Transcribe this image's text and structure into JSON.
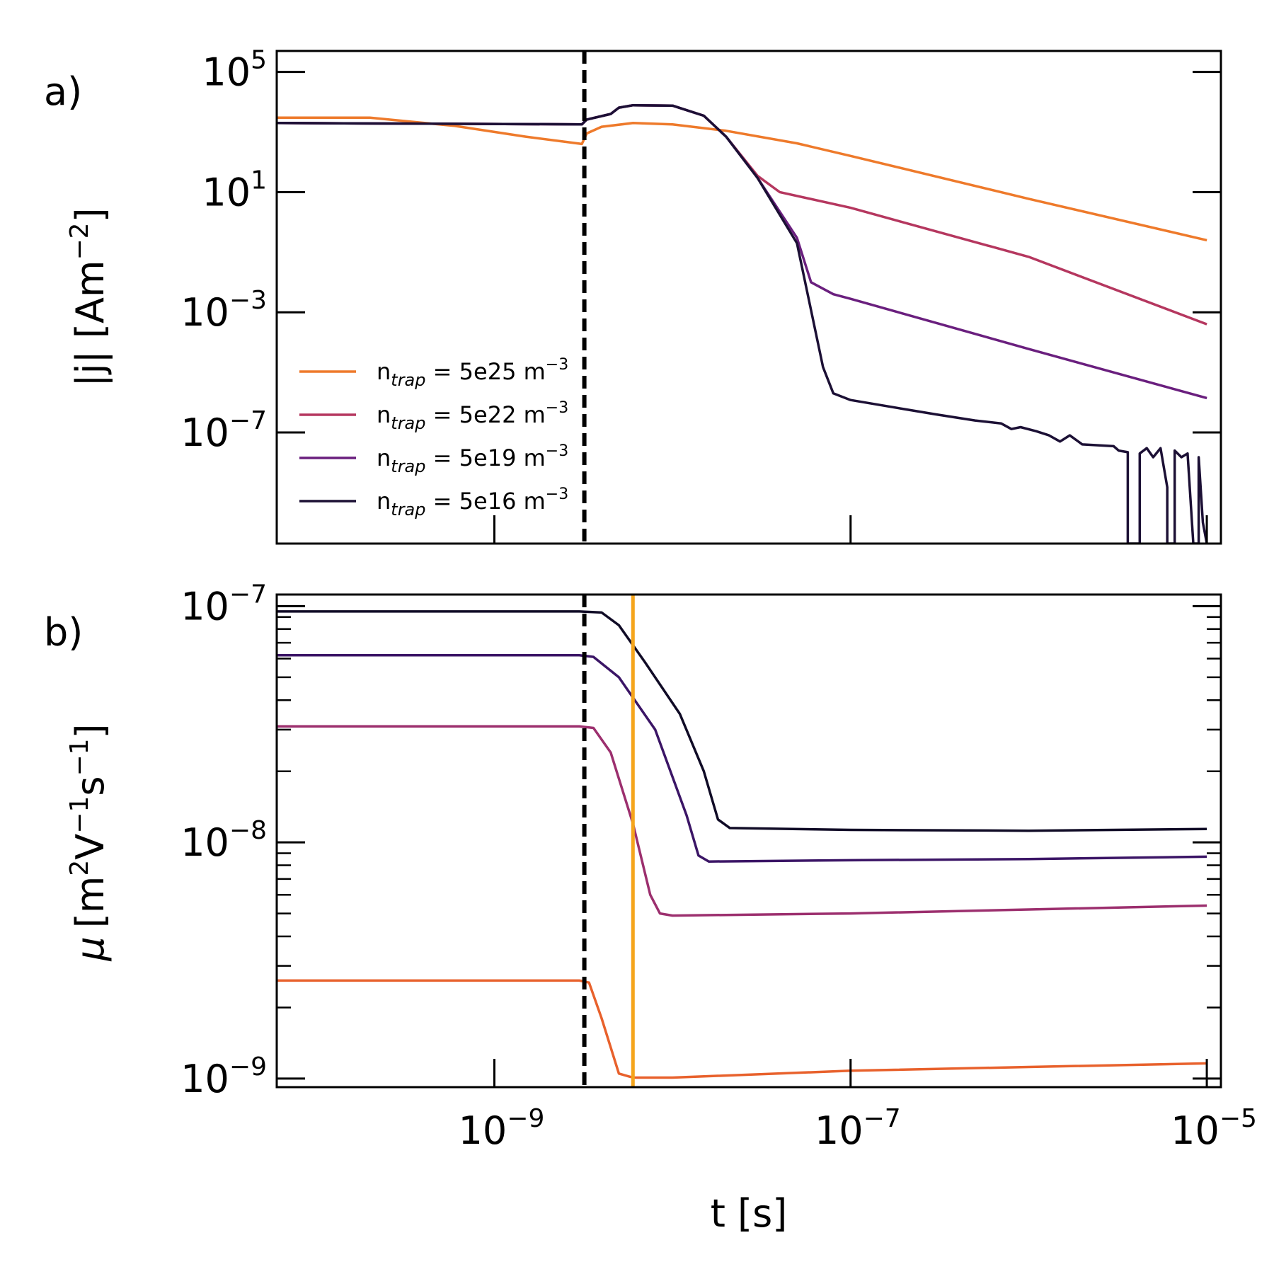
{
  "chart_data": [
    {
      "type": "line",
      "panel_label": "a)",
      "ylabel": "|j| [Am",
      "ylabel_sup": "−2",
      "ylabel_close": "]",
      "xscale": "log",
      "yscale": "log",
      "xlim": [
        6e-11,
        1.2e-05
      ],
      "ylim": [
        2e-11,
        500000.0
      ],
      "yticks": [
        {
          "value": 100000.0,
          "base": "10",
          "exp": "5"
        },
        {
          "value": 10,
          "base": "10",
          "exp": "1"
        },
        {
          "value": 0.001,
          "base": "10",
          "exp": "−3"
        },
        {
          "value": 1e-07,
          "base": "10",
          "exp": "−7"
        }
      ],
      "xticks": [
        1e-09,
        1e-07,
        1e-05
      ],
      "vlines": [
        {
          "x": 3.2e-09,
          "style": "dashed",
          "color": "#000000"
        }
      ],
      "legend": {
        "position": "lower-left"
      },
      "series": [
        {
          "name": "5e25",
          "label_pre": "n",
          "label_sub": "trap",
          "label_mid": " = 5e25 m",
          "label_sup": "−3",
          "color": "#ee7a2b",
          "points": [
            [
              6e-11,
              3000
            ],
            [
              2e-10,
              3000
            ],
            [
              6e-10,
              1600
            ],
            [
              1.5e-09,
              700
            ],
            [
              3.1e-09,
              400
            ],
            [
              3.3e-09,
              900
            ],
            [
              4e-09,
              1500
            ],
            [
              6e-09,
              2000
            ],
            [
              1e-08,
              1800
            ],
            [
              2e-08,
              1100
            ],
            [
              5e-08,
              420
            ],
            [
              1e-07,
              160
            ],
            [
              1e-06,
              6
            ],
            [
              1e-05,
              0.25
            ]
          ]
        },
        {
          "name": "5e22",
          "label_pre": "n",
          "label_sub": "trap",
          "label_mid": " = 5e22 m",
          "label_sup": "−3",
          "color": "#b5375f",
          "points": [
            [
              6e-11,
              2000
            ],
            [
              3.1e-09,
              1800
            ],
            [
              3.3e-09,
              2600
            ],
            [
              4.5e-09,
              4000
            ],
            [
              5e-09,
              6500
            ],
            [
              6e-09,
              7800
            ],
            [
              1e-08,
              7600
            ],
            [
              1.5e-08,
              3500
            ],
            [
              2e-08,
              700
            ],
            [
              3e-08,
              35
            ],
            [
              4e-08,
              10
            ],
            [
              1e-07,
              3
            ],
            [
              1e-06,
              0.07
            ],
            [
              1e-05,
              0.0004
            ]
          ]
        },
        {
          "name": "5e19",
          "label_pre": "n",
          "label_sub": "trap",
          "label_mid": " = 5e19 m",
          "label_sup": "−3",
          "color": "#6a1f7e",
          "points": [
            [
              6e-11,
              2000
            ],
            [
              3.1e-09,
              1800
            ],
            [
              3.3e-09,
              2600
            ],
            [
              4.5e-09,
              4000
            ],
            [
              5e-09,
              6500
            ],
            [
              6e-09,
              7800
            ],
            [
              1e-08,
              7600
            ],
            [
              1.5e-08,
              3500
            ],
            [
              2e-08,
              700
            ],
            [
              3e-08,
              30
            ],
            [
              5e-08,
              0.3
            ],
            [
              6e-08,
              0.01
            ],
            [
              8e-08,
              0.004
            ],
            [
              1e-07,
              0.0028
            ],
            [
              1e-06,
              6e-05
            ],
            [
              1e-05,
              1.4e-06
            ]
          ]
        },
        {
          "name": "5e16",
          "label_pre": "n",
          "label_sub": "trap",
          "label_mid": " = 5e16 m",
          "label_sup": "−3",
          "color": "#1c1035",
          "points": [
            [
              6e-11,
              2000
            ],
            [
              3.1e-09,
              1800
            ],
            [
              3.3e-09,
              2600
            ],
            [
              4.5e-09,
              4000
            ],
            [
              5e-09,
              6500
            ],
            [
              6e-09,
              7800
            ],
            [
              1e-08,
              7600
            ],
            [
              1.5e-08,
              3500
            ],
            [
              2e-08,
              700
            ],
            [
              3e-08,
              30
            ],
            [
              5e-08,
              0.2
            ],
            [
              7e-08,
              1.5e-05
            ],
            [
              8e-08,
              2e-06
            ],
            [
              1e-07,
              1.2e-06
            ],
            [
              2e-07,
              6e-07
            ],
            [
              3e-07,
              4e-07
            ],
            [
              5e-07,
              2.5e-07
            ],
            [
              7e-07,
              2e-07
            ],
            [
              8e-07,
              1.3e-07
            ],
            [
              9e-07,
              1.5e-07
            ],
            [
              1.1e-06,
              1.1e-07
            ],
            [
              1.3e-06,
              8e-08
            ],
            [
              1.5e-06,
              5e-08
            ],
            [
              1.7e-06,
              8e-08
            ],
            [
              2e-06,
              4e-08
            ],
            [
              3e-06,
              3.5e-08
            ],
            [
              3.2e-06,
              2.5e-08
            ],
            [
              3.6e-06,
              2.2e-08
            ],
            [
              3.6e-06,
              1e-11
            ],
            [
              4.2e-06,
              1e-11
            ],
            [
              4.2e-06,
              2e-08
            ],
            [
              4.6e-06,
              3e-08
            ],
            [
              5e-06,
              1.5e-08
            ],
            [
              5.5e-06,
              3e-08
            ],
            [
              6e-06,
              1.5e-09
            ],
            [
              6e-06,
              1e-11
            ],
            [
              6.6e-06,
              1e-11
            ],
            [
              6.6e-06,
              2.5e-08
            ],
            [
              7.2e-06,
              1.5e-08
            ],
            [
              7.8e-06,
              2e-08
            ],
            [
              8.4e-06,
              1e-11
            ],
            [
              9e-06,
              1e-11
            ],
            [
              9e-06,
              1.5e-08
            ],
            [
              9.5e-06,
              1e-10
            ],
            [
              1e-05,
              1e-11
            ]
          ]
        }
      ]
    },
    {
      "type": "line",
      "panel_label": "b)",
      "ylabel_mu": "μ",
      "ylabel_rest": "[m",
      "ylabel_sup1": "2",
      "ylabel_v": "V",
      "ylabel_sup2": "−1",
      "ylabel_s": "s",
      "ylabel_sup3": "−1",
      "ylabel_close": "]",
      "xlabel": "t [s]",
      "xscale": "log",
      "yscale": "log",
      "xlim": [
        6e-11,
        1.2e-05
      ],
      "ylim": [
        9.2e-10,
        1.12e-07
      ],
      "yticks": [
        {
          "value": 1e-07,
          "base": "10",
          "exp": "−7"
        },
        {
          "value": 1e-08,
          "base": "10",
          "exp": "−8"
        },
        {
          "value": 1e-09,
          "base": "10",
          "exp": "−9"
        }
      ],
      "xticks": [
        {
          "value": 1e-09,
          "base": "10",
          "exp": "−9"
        },
        {
          "value": 1e-07,
          "base": "10",
          "exp": "−7"
        },
        {
          "value": 1e-05,
          "base": "10",
          "exp": "−5"
        }
      ],
      "vlines": [
        {
          "x": 3.2e-09,
          "style": "dashed",
          "color": "#000000"
        },
        {
          "x": 6e-09,
          "style": "solid",
          "color": "#f5a51c"
        }
      ],
      "series": [
        {
          "name": "5e25",
          "color": "#e8612c",
          "points": [
            [
              6e-11,
              2.6e-09
            ],
            [
              3e-09,
              2.6e-09
            ],
            [
              3.4e-09,
              2.55e-09
            ],
            [
              4e-09,
              1.8e-09
            ],
            [
              5e-09,
              1.05e-09
            ],
            [
              6e-09,
              1.01e-09
            ],
            [
              1e-08,
              1.01e-09
            ],
            [
              1e-07,
              1.08e-09
            ],
            [
              1e-06,
              1.12e-09
            ],
            [
              1e-05,
              1.16e-09
            ]
          ]
        },
        {
          "name": "5e22",
          "color": "#9c2f6e",
          "points": [
            [
              6e-11,
              3.1e-08
            ],
            [
              3e-09,
              3.1e-08
            ],
            [
              3.6e-09,
              3.05e-08
            ],
            [
              4.5e-09,
              2.4e-08
            ],
            [
              6e-09,
              1.2e-08
            ],
            [
              7.5e-09,
              6e-09
            ],
            [
              8.5e-09,
              5e-09
            ],
            [
              1e-08,
              4.9e-09
            ],
            [
              1e-07,
              5e-09
            ],
            [
              1e-06,
              5.2e-09
            ],
            [
              1e-05,
              5.4e-09
            ]
          ]
        },
        {
          "name": "5e19",
          "color": "#3b1566",
          "points": [
            [
              6e-11,
              6.2e-08
            ],
            [
              3e-09,
              6.2e-08
            ],
            [
              3.6e-09,
              6.1e-08
            ],
            [
              5e-09,
              5e-08
            ],
            [
              8e-09,
              3e-08
            ],
            [
              1.2e-08,
              1.3e-08
            ],
            [
              1.4e-08,
              8.8e-09
            ],
            [
              1.6e-08,
              8.3e-09
            ],
            [
              1e-07,
              8.4e-09
            ],
            [
              1e-06,
              8.5e-09
            ],
            [
              1e-05,
              8.7e-09
            ]
          ]
        },
        {
          "name": "5e16",
          "color": "#100b26",
          "points": [
            [
              6e-11,
              9.5e-08
            ],
            [
              3e-09,
              9.5e-08
            ],
            [
              4e-09,
              9.4e-08
            ],
            [
              5e-09,
              8.3e-08
            ],
            [
              7e-09,
              5.8e-08
            ],
            [
              1.1e-08,
              3.5e-08
            ],
            [
              1.5e-08,
              2e-08
            ],
            [
              1.8e-08,
              1.25e-08
            ],
            [
              2.1e-08,
              1.15e-08
            ],
            [
              1e-07,
              1.13e-08
            ],
            [
              1e-06,
              1.12e-08
            ],
            [
              1e-05,
              1.14e-08
            ]
          ]
        }
      ]
    }
  ]
}
